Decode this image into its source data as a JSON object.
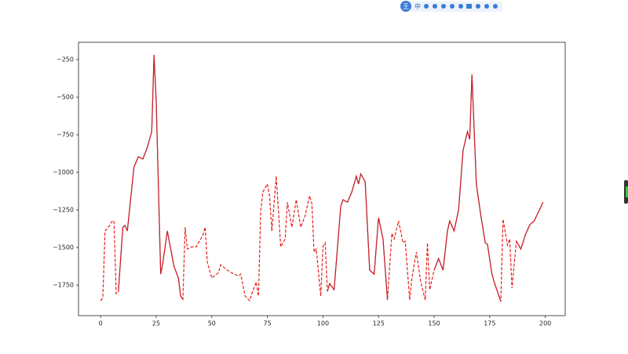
{
  "toolbar": {
    "logo": "王",
    "lang": "中"
  },
  "chart_data": {
    "type": "line",
    "x": [
      0,
      1,
      2,
      4,
      5,
      6,
      7,
      8,
      10,
      11,
      12,
      15,
      17,
      19,
      21,
      23,
      24,
      25,
      27,
      28,
      30,
      31,
      33,
      35,
      36,
      37,
      38,
      39,
      41,
      43,
      46,
      47,
      48,
      50,
      53,
      54,
      57,
      60,
      62,
      63,
      65,
      67,
      68,
      70,
      71,
      72,
      73,
      75,
      76,
      77,
      79,
      81,
      83,
      84,
      86,
      88,
      90,
      92,
      94,
      95,
      96,
      97,
      99,
      100,
      101,
      102,
      103,
      105,
      108,
      109,
      111,
      113,
      115,
      116,
      117,
      119,
      121,
      123,
      125,
      127,
      129,
      131,
      132,
      134,
      136,
      137,
      139,
      140,
      142,
      144,
      146,
      147,
      148,
      150,
      152,
      154,
      156,
      157,
      159,
      161,
      163,
      165,
      166,
      167,
      169,
      171,
      173,
      174,
      176,
      177,
      180,
      181,
      183,
      184,
      185,
      187,
      189,
      191,
      193,
      195,
      197,
      199
    ],
    "series": [
      {
        "color": "#8a1c3c",
        "dash": false,
        "values": [
          null,
          null,
          null,
          null,
          null,
          null,
          null,
          -1792,
          -1365,
          -1354,
          -1390,
          -964,
          -896,
          -911,
          -833,
          -729,
          -219,
          -531,
          -1677,
          -1599,
          -1390,
          -1469,
          -1625,
          -1703,
          -1823,
          -1844,
          null,
          null,
          null,
          null,
          null,
          null,
          null,
          null,
          null,
          null,
          null,
          null,
          null,
          null,
          null,
          null,
          null,
          null,
          null,
          null,
          null,
          null,
          null,
          null,
          null,
          null,
          null,
          null,
          null,
          null,
          null,
          null,
          null,
          null,
          null,
          null,
          null,
          null,
          null,
          -1792,
          -1740,
          -1781,
          -1224,
          -1182,
          -1198,
          -1130,
          -1026,
          -1078,
          -1010,
          -1062,
          -1651,
          -1677,
          -1302,
          -1443,
          -1849,
          null,
          null,
          null,
          null,
          null,
          null,
          null,
          null,
          null,
          null,
          null,
          null,
          -1651,
          -1573,
          -1651,
          -1390,
          -1323,
          -1390,
          -1250,
          -854,
          -729,
          -781,
          -349,
          -1078,
          -1286,
          -1469,
          -1479,
          -1677,
          -1729,
          -1859,
          null,
          null,
          null,
          null,
          -1458,
          -1510,
          -1417,
          -1349,
          -1323,
          -1260,
          -1198
        ]
      },
      {
        "color": "#e8201c",
        "dash": true,
        "values": [
          -1854,
          -1833,
          -1390,
          -1354,
          -1328,
          -1323,
          -1807,
          -1792,
          -1365,
          -1354,
          -1390,
          -964,
          -896,
          -911,
          -833,
          -729,
          -219,
          -531,
          -1677,
          -1599,
          -1390,
          -1469,
          -1625,
          -1703,
          -1823,
          -1844,
          -1365,
          -1510,
          -1495,
          -1495,
          -1417,
          -1365,
          -1599,
          -1703,
          -1667,
          -1615,
          -1651,
          -1677,
          -1688,
          -1677,
          -1823,
          -1854,
          -1807,
          -1729,
          -1823,
          -1260,
          -1130,
          -1078,
          -1156,
          -1390,
          -1026,
          -1495,
          -1443,
          -1198,
          -1365,
          -1182,
          -1365,
          -1286,
          -1156,
          -1208,
          -1531,
          -1510,
          -1823,
          -1495,
          -1469,
          -1792,
          -1740,
          -1781,
          -1224,
          -1182,
          -1198,
          -1130,
          -1026,
          -1078,
          -1010,
          -1062,
          -1651,
          -1677,
          -1302,
          -1443,
          -1849,
          -1406,
          -1443,
          -1323,
          -1469,
          -1458,
          -1849,
          -1703,
          -1531,
          -1729,
          -1849,
          -1469,
          -1781,
          -1651,
          -1573,
          -1651,
          -1390,
          -1323,
          -1390,
          -1250,
          -854,
          -729,
          -781,
          -349,
          -1078,
          -1286,
          -1469,
          -1479,
          -1677,
          -1729,
          -1859,
          -1312,
          -1484,
          -1443,
          -1771,
          -1458,
          -1510,
          -1417,
          -1349,
          -1323,
          -1260,
          -1198
        ]
      }
    ],
    "xlim": [
      -9.95,
      208.95
    ],
    "ylim": [
      -1953,
      -135
    ],
    "xticks": [
      0,
      25,
      50,
      75,
      100,
      125,
      150,
      175,
      200
    ],
    "yticks": [
      {
        "value": -250,
        "label": "−250"
      },
      {
        "value": -500,
        "label": "−500"
      },
      {
        "value": -750,
        "label": "−750"
      },
      {
        "value": -1000,
        "label": "−1000"
      },
      {
        "value": -1250,
        "label": "−1250"
      },
      {
        "value": -1500,
        "label": "−1500"
      },
      {
        "value": -1750,
        "label": "−1750"
      }
    ],
    "grid": false
  }
}
